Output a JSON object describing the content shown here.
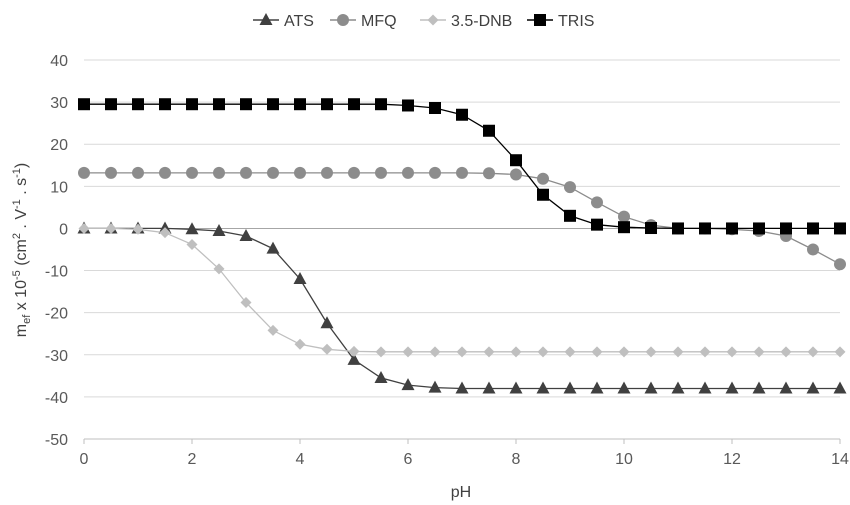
{
  "chart_data": {
    "type": "line",
    "title": "",
    "xlabel": "pH",
    "ylabel_main": "m",
    "ylabel_sub": "ef",
    "ylabel_rest1": " x 10",
    "ylabel_sup1": "-5",
    "ylabel_rest2": " (cm",
    "ylabel_sup2": "2",
    "ylabel_rest3": " . V",
    "ylabel_sup3": "-1",
    "ylabel_rest4": " . s",
    "ylabel_sup4": "-1",
    "ylabel_rest5": ")",
    "xlim": [
      0,
      14
    ],
    "ylim": [
      -50,
      40
    ],
    "xticks": [
      "0",
      "2",
      "4",
      "6",
      "8",
      "10",
      "12",
      "14"
    ],
    "yticks": [
      "40",
      "30",
      "20",
      "10",
      "0",
      "-10",
      "-20",
      "-30",
      "-40",
      "-50"
    ],
    "grid": "horizontal",
    "legend_position": "top",
    "x": [
      0,
      0.5,
      1,
      1.5,
      2,
      2.5,
      3,
      3.5,
      4,
      4.5,
      5,
      5.5,
      6,
      6.5,
      7,
      7.5,
      8,
      8.5,
      9,
      9.5,
      10,
      10.5,
      11,
      11.5,
      12,
      12.5,
      13,
      13.5,
      14
    ],
    "series": [
      {
        "name": "ATS",
        "marker": "triangle",
        "color": "#404040",
        "values": [
          0,
          0,
          0,
          0,
          -0.2,
          -0.6,
          -1.8,
          -4.8,
          -12,
          -22.5,
          -31.2,
          -35.5,
          -37.2,
          -37.8,
          -38,
          -38,
          -38,
          -38,
          -38,
          -38,
          -38,
          -38,
          -38,
          -38,
          -38,
          -38,
          -38,
          -38,
          -38
        ]
      },
      {
        "name": "MFQ",
        "marker": "circle",
        "color": "#8c8c8c",
        "values": [
          13.2,
          13.2,
          13.2,
          13.2,
          13.2,
          13.2,
          13.2,
          13.2,
          13.2,
          13.2,
          13.2,
          13.2,
          13.2,
          13.2,
          13.2,
          13.1,
          12.8,
          11.8,
          9.8,
          6.2,
          2.8,
          0.8,
          0,
          0,
          -0.2,
          -0.6,
          -1.8,
          -5,
          -8.5
        ]
      },
      {
        "name": "3.5-DNB",
        "marker": "diamond",
        "color": "#bfbfbf",
        "values": [
          0,
          0,
          -0.2,
          -1,
          -3.8,
          -9.6,
          -17.6,
          -24.2,
          -27.5,
          -28.7,
          -29.2,
          -29.3,
          -29.3,
          -29.3,
          -29.3,
          -29.3,
          -29.3,
          -29.3,
          -29.3,
          -29.3,
          -29.3,
          -29.3,
          -29.3,
          -29.3,
          -29.3,
          -29.3,
          -29.3,
          -29.3,
          -29.3
        ]
      },
      {
        "name": "TRIS",
        "marker": "square",
        "color": "#000000",
        "values": [
          29.5,
          29.5,
          29.5,
          29.5,
          29.5,
          29.5,
          29.5,
          29.5,
          29.5,
          29.5,
          29.5,
          29.5,
          29.2,
          28.6,
          27,
          23.2,
          16.2,
          8,
          3,
          0.9,
          0.3,
          0.1,
          0,
          0,
          0,
          0,
          0,
          0,
          0
        ]
      }
    ]
  }
}
